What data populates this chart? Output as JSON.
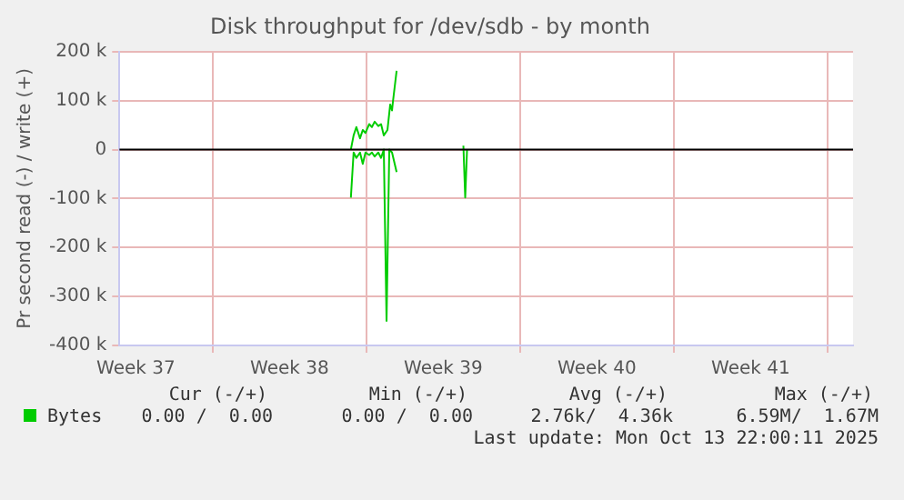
{
  "chart_data": {
    "type": "line",
    "title": "Disk throughput for /dev/sdb - by month",
    "ylabel": "Pr second read (-) / write (+)",
    "xlim": [
      "2025-09-10T18:00",
      "2025-10-14T04:00"
    ],
    "xticks": [
      {
        "value": "2025-09-11T12:00",
        "label": "Week 37"
      },
      {
        "value": "2025-09-15",
        "label": null
      },
      {
        "value": "2025-09-18T12:00",
        "label": "Week 38"
      },
      {
        "value": "2025-09-22",
        "label": null
      },
      {
        "value": "2025-09-25T12:00",
        "label": "Week 39"
      },
      {
        "value": "2025-09-29",
        "label": null
      },
      {
        "value": "2025-10-02T12:00",
        "label": "Week 40"
      },
      {
        "value": "2025-10-06",
        "label": null
      },
      {
        "value": "2025-10-09T12:00",
        "label": "Week 41"
      },
      {
        "value": "2025-10-13",
        "label": null
      }
    ],
    "ylim": [
      -400000,
      200000
    ],
    "yticks": [
      {
        "value": -400000,
        "label": "-400 k"
      },
      {
        "value": -300000,
        "label": "-300 k"
      },
      {
        "value": -200000,
        "label": "-200 k"
      },
      {
        "value": -100000,
        "label": "-100 k"
      },
      {
        "value": 0,
        "label": "0"
      },
      {
        "value": 100000,
        "label": "100 k"
      },
      {
        "value": 200000,
        "label": "200 k"
      }
    ],
    "grid": true,
    "legend": "bottom",
    "marker": "none",
    "line_style": "solid",
    "ref_lines": [
      {
        "axis": "y",
        "value": 0,
        "color": "#000000"
      }
    ],
    "series": [
      {
        "name": "Bytes",
        "color": "#00cc00",
        "x": [
          "2025-09-21T07:00",
          "2025-09-21T10:00",
          "2025-09-21T13:00",
          "2025-09-21T17:00",
          "2025-09-21T20:00",
          "2025-09-21T23:00",
          "2025-09-22T03:00",
          "2025-09-22T06:00",
          "2025-09-22T09:00",
          "2025-09-22T13:00",
          "2025-09-22T16:00",
          "2025-09-22T19:00",
          "2025-09-22T23:00",
          "2025-09-23T02:00",
          "2025-09-23T04:00",
          "2025-09-23T05:00",
          "2025-09-23T09:00"
        ],
        "values": [
          0,
          29000,
          46000,
          23000,
          40000,
          34000,
          52000,
          46000,
          57000,
          48000,
          52000,
          29000,
          40000,
          92000,
          80000,
          98000,
          161000
        ]
      },
      {
        "color": "#00cc00",
        "x": [
          "2025-09-21T07:00",
          "2025-09-21T10:00",
          "2025-09-21T13:00",
          "2025-09-21T17:00",
          "2025-09-21T20:00",
          "2025-09-21T23:00",
          "2025-09-22T03:00",
          "2025-09-22T06:00",
          "2025-09-22T09:00",
          "2025-09-22T13:00",
          "2025-09-22T16:00",
          "2025-09-22T19:00",
          "2025-09-22T22:00",
          "2025-09-23T01:00",
          "2025-09-23T04:00",
          "2025-09-23T09:00",
          "2025-09-23T18:00",
          "2025-09-26T10:00",
          "2025-09-26T12:00",
          "2025-09-26T14:00"
        ],
        "values": [
          -98000,
          -6000,
          -17000,
          -6000,
          -29000,
          -6000,
          -11000,
          -6000,
          -14000,
          -6000,
          -17000,
          0,
          -350000,
          0,
          -6000,
          -46000,
          null,
          8000,
          -98000,
          0
        ]
      }
    ],
    "annotations": [
      "Cur (-/+)",
      "Min (-/+)",
      "Avg (-/+)",
      "Max (-/+)",
      "0.00 /  0.00",
      "0.00 /  0.00",
      "2.76k/  4.36k",
      "6.59M/  1.67M",
      "Last update: Mon Oct 13 22:00:11 2025"
    ]
  }
}
